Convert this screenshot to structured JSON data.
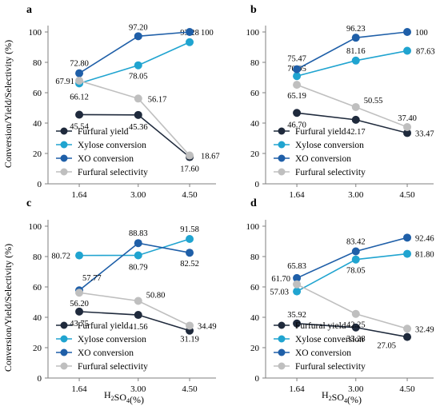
{
  "colors": {
    "furfural_yield": "#1f2a3c",
    "xylose_conversion": "#20a4d0",
    "xo_conversion": "#1f5fa8",
    "furfural_selectivity": "#bfbfbf",
    "axis": "#7f7f7f",
    "text": "#000000"
  },
  "shared_ylabel": "Conversion/Yield/Selectivity (%)",
  "chart_data": [
    {
      "panel": "a",
      "type": "line",
      "categories": [
        "1.64",
        "3.00",
        "4.50"
      ],
      "xlabel": "",
      "ylim": [
        0,
        100
      ],
      "yticks": [
        "0",
        "20",
        "40",
        "60",
        "80",
        "100"
      ],
      "grid": false,
      "legend_position": "bottom-left",
      "series": [
        {
          "name": "Furfural yield",
          "values": [
            45.54,
            45.36,
            17.6
          ],
          "labels": [
            "45.54",
            "45.36",
            "17.60"
          ]
        },
        {
          "name": "Xylose conversion",
          "values": [
            66.12,
            78.05,
            93.28
          ],
          "labels": [
            "66.12",
            "78.05",
            "93.28"
          ]
        },
        {
          "name": "XO conversion",
          "values": [
            72.8,
            97.2,
            100
          ],
          "labels": [
            "72.80",
            "97.20",
            "100"
          ]
        },
        {
          "name": "Furfural selectivity",
          "values": [
            67.91,
            56.17,
            18.67
          ],
          "labels": [
            "67.91",
            "56.17",
            "18.67"
          ]
        }
      ]
    },
    {
      "panel": "b",
      "type": "line",
      "categories": [
        "1.64",
        "3.00",
        "4.50"
      ],
      "xlabel": "",
      "ylim": [
        0,
        100
      ],
      "yticks": [
        "0",
        "20",
        "40",
        "60",
        "80",
        "100"
      ],
      "grid": false,
      "legend_position": "bottom-left",
      "series": [
        {
          "name": "Furfural yield",
          "values": [
            46.7,
            42.17,
            33.47
          ],
          "labels": [
            "46.70",
            "42.17",
            "33.47"
          ]
        },
        {
          "name": "Xylose conversion",
          "values": [
            70.95,
            81.16,
            87.63
          ],
          "labels": [
            "70.95",
            "81.16",
            "87.63"
          ]
        },
        {
          "name": "XO conversion",
          "values": [
            75.47,
            96.23,
            100
          ],
          "labels": [
            "75.47",
            "96.23",
            "100"
          ]
        },
        {
          "name": "Furfural selectivity",
          "values": [
            65.19,
            50.55,
            37.4
          ],
          "labels": [
            "65.19",
            "50.55",
            "37.40"
          ]
        }
      ]
    },
    {
      "panel": "c",
      "type": "line",
      "categories": [
        "1.64",
        "3.00",
        "4.50"
      ],
      "xlabel": "H2SO4(%)",
      "ylim": [
        0,
        100
      ],
      "yticks": [
        "0",
        "20",
        "40",
        "60",
        "80",
        "100"
      ],
      "grid": false,
      "legend_position": "bottom-left",
      "series": [
        {
          "name": "Furfural yield",
          "values": [
            43.75,
            41.56,
            31.19
          ],
          "labels": [
            "43.75",
            "41.56",
            "31.19"
          ]
        },
        {
          "name": "Xylose conversion",
          "values": [
            80.72,
            80.79,
            91.58
          ],
          "labels": [
            "80.72",
            "80.79",
            "91.58"
          ]
        },
        {
          "name": "XO conversion",
          "values": [
            57.77,
            88.83,
            82.52
          ],
          "labels": [
            "57.77",
            "88.83",
            "82.52"
          ]
        },
        {
          "name": "Furfural selectivity",
          "values": [
            56.2,
            50.8,
            34.49
          ],
          "labels": [
            "56.20",
            "50.80",
            "34.49"
          ]
        }
      ]
    },
    {
      "panel": "d",
      "type": "line",
      "categories": [
        "1.64",
        "3.00",
        "4.50"
      ],
      "xlabel": "H2SO4(%)",
      "ylim": [
        0,
        100
      ],
      "yticks": [
        "0",
        "20",
        "40",
        "60",
        "80",
        "100"
      ],
      "grid": false,
      "legend_position": "bottom-left",
      "series": [
        {
          "name": "Furfural yield",
          "values": [
            35.92,
            33.28,
            27.05
          ],
          "labels": [
            "35.92",
            "33.28",
            "27.05"
          ]
        },
        {
          "name": "Xylose conversion",
          "values": [
            57.03,
            78.05,
            81.8
          ],
          "labels": [
            "57.03",
            "78.05",
            "81.80"
          ]
        },
        {
          "name": "XO conversion",
          "values": [
            65.83,
            83.42,
            92.46
          ],
          "labels": [
            "65.83",
            "83.42",
            "92.46"
          ]
        },
        {
          "name": "Furfural selectivity",
          "values": [
            61.7,
            42.25,
            32.49
          ],
          "labels": [
            "61.70",
            "42.25",
            "32.49"
          ]
        }
      ]
    }
  ]
}
